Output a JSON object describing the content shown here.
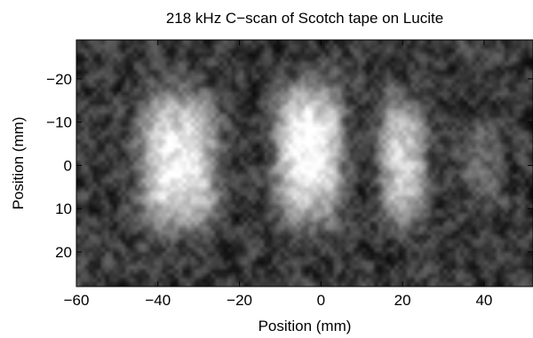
{
  "chart_data": {
    "type": "heatmap",
    "title": "218 kHz C−scan of Scotch tape on Lucite",
    "xlabel": "Position (mm)",
    "ylabel": "Position (mm)",
    "xlim": [
      -60,
      52
    ],
    "ylim": [
      -29,
      28
    ],
    "y_inverted": true,
    "colormap": "gray",
    "x_ticks": [
      {
        "value": -60,
        "label": "−60"
      },
      {
        "value": -40,
        "label": "−40"
      },
      {
        "value": -20,
        "label": "−20"
      },
      {
        "value": 0,
        "label": "0"
      },
      {
        "value": 20,
        "label": "20"
      },
      {
        "value": 40,
        "label": "40"
      }
    ],
    "y_ticks": [
      {
        "value": -20,
        "label": "−20"
      },
      {
        "value": -10,
        "label": "−10"
      },
      {
        "value": 0,
        "label": "0"
      },
      {
        "value": 10,
        "label": "10"
      },
      {
        "value": 20,
        "label": "20"
      }
    ],
    "background_level": 0.22,
    "noise_level": 0.18,
    "blobs": [
      {
        "x": -35,
        "y": -1,
        "sx": 7.5,
        "sy": 11,
        "peak": 0.75
      },
      {
        "x": -3,
        "y": -3,
        "sx": 6.5,
        "sy": 11,
        "peak": 0.8
      },
      {
        "x": 20,
        "y": -1,
        "sx": 4.5,
        "sy": 10,
        "peak": 0.62
      },
      {
        "x": 40,
        "y": 0,
        "sx": 4,
        "sy": 7,
        "peak": 0.18
      }
    ]
  }
}
